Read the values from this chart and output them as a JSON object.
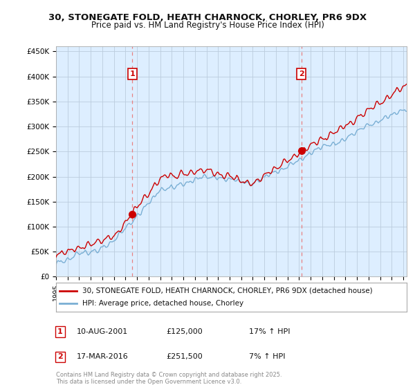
{
  "title_line1": "30, STONEGATE FOLD, HEATH CHARNOCK, CHORLEY, PR6 9DX",
  "title_line2": "Price paid vs. HM Land Registry's House Price Index (HPI)",
  "ylabel_ticks": [
    "£0",
    "£50K",
    "£100K",
    "£150K",
    "£200K",
    "£250K",
    "£300K",
    "£350K",
    "£400K",
    "£450K"
  ],
  "ytick_vals": [
    0,
    50000,
    100000,
    150000,
    200000,
    250000,
    300000,
    350000,
    400000,
    450000
  ],
  "ylim": [
    0,
    460000
  ],
  "xlim_start": 1995.5,
  "xlim_end": 2025.3,
  "xtick_years": [
    1995,
    1996,
    1997,
    1998,
    1999,
    2000,
    2001,
    2002,
    2003,
    2004,
    2005,
    2006,
    2007,
    2008,
    2009,
    2010,
    2011,
    2012,
    2013,
    2014,
    2015,
    2016,
    2017,
    2018,
    2019,
    2020,
    2021,
    2022,
    2023,
    2024,
    2025
  ],
  "sale1_x": 2001.6,
  "sale1_y": 125000,
  "sale1_label": "1",
  "sale1_date": "10-AUG-2001",
  "sale1_price": "£125,000",
  "sale1_hpi": "17% ↑ HPI",
  "sale2_x": 2016.2,
  "sale2_y": 251500,
  "sale2_label": "2",
  "sale2_date": "17-MAR-2016",
  "sale2_price": "£251,500",
  "sale2_hpi": "7% ↑ HPI",
  "property_line_color": "#cc0000",
  "hpi_line_color": "#7aafd4",
  "vline_color": "#e88080",
  "plot_bg_color": "#ddeeff",
  "legend_property": "30, STONEGATE FOLD, HEATH CHARNOCK, CHORLEY, PR6 9DX (detached house)",
  "legend_hpi": "HPI: Average price, detached house, Chorley",
  "footer": "Contains HM Land Registry data © Crown copyright and database right 2025.\nThis data is licensed under the Open Government Licence v3.0.",
  "background_color": "#ffffff",
  "grid_color": "#bbccdd"
}
